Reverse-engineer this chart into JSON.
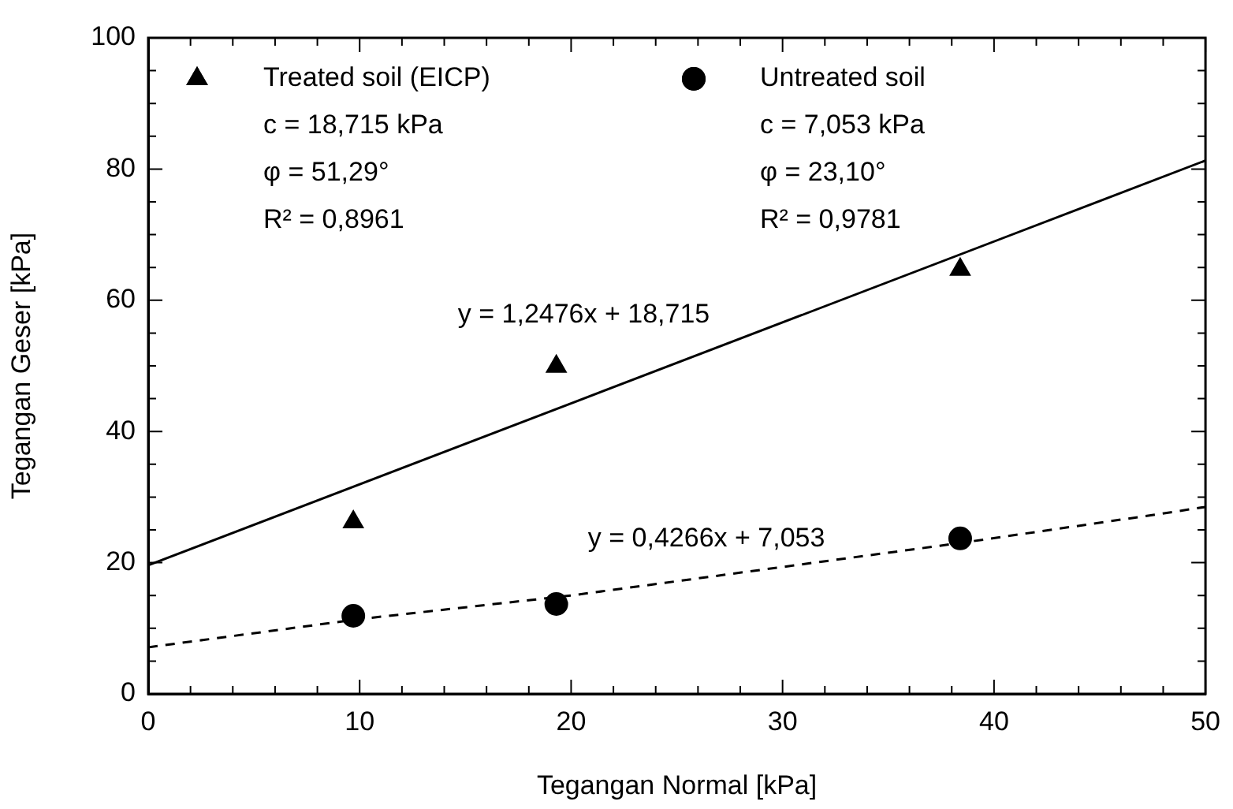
{
  "chart_data": {
    "type": "scatter",
    "xlabel": "Tegangan Normal [kPa]",
    "ylabel": "Tegangan Geser [kPa]",
    "xlim": [
      0,
      50
    ],
    "ylim": [
      0,
      100
    ],
    "xticks": [
      0,
      {
        "value": 2,
        "label": null
      },
      {
        "value": 4,
        "label": null
      },
      {
        "value": 6,
        "label": null
      },
      {
        "value": 8,
        "label": null
      },
      10,
      {
        "value": 12,
        "label": null
      },
      {
        "value": 14,
        "label": null
      },
      {
        "value": 16,
        "label": null
      },
      {
        "value": 18,
        "label": null
      },
      20,
      {
        "value": 22,
        "label": null
      },
      {
        "value": 24,
        "label": null
      },
      {
        "value": 26,
        "label": null
      },
      {
        "value": 28,
        "label": null
      },
      30,
      {
        "value": 32,
        "label": null
      },
      {
        "value": 34,
        "label": null
      },
      {
        "value": 36,
        "label": null
      },
      {
        "value": 38,
        "label": null
      },
      40,
      {
        "value": 42,
        "label": null
      },
      {
        "value": 44,
        "label": null
      },
      {
        "value": 46,
        "label": null
      },
      {
        "value": 48,
        "label": null
      },
      50
    ],
    "yticks": [
      0,
      {
        "value": 5,
        "label": null
      },
      {
        "value": 10,
        "label": null
      },
      {
        "value": 15,
        "label": null
      },
      20,
      {
        "value": 25,
        "label": null
      },
      {
        "value": 30,
        "label": null
      },
      {
        "value": 35,
        "label": null
      },
      40,
      {
        "value": 45,
        "label": null
      },
      {
        "value": 50,
        "label": null
      },
      {
        "value": 55,
        "label": null
      },
      60,
      {
        "value": 65,
        "label": null
      },
      {
        "value": 70,
        "label": null
      },
      {
        "value": 75,
        "label": null
      },
      80,
      {
        "value": 85,
        "label": null
      },
      {
        "value": 90,
        "label": null
      },
      {
        "value": 95,
        "label": null
      },
      100
    ],
    "grid": false,
    "legend": "top left",
    "series": [
      {
        "name": "Treated soil (EICP)",
        "marker": "triangle",
        "color": "#000000",
        "x": [
          9.7,
          19.3,
          38.4
        ],
        "values": [
          26.2,
          49.9,
          64.7
        ]
      },
      {
        "name": "Untreated soil",
        "marker": "circle",
        "color": "#000000",
        "x": [
          9.7,
          19.3,
          38.4
        ],
        "values": [
          11.9,
          13.7,
          23.7
        ]
      },
      {
        "type": "line",
        "marker": "none",
        "line_style": "solid",
        "color": "#000000",
        "x": [
          0,
          50
        ],
        "values": [
          19.6,
          81.3
        ]
      },
      {
        "type": "line",
        "marker": "none",
        "line_style": "dashed",
        "color": "#000000",
        "x": [
          0,
          10,
          20,
          38.4,
          47.8,
          50
        ],
        "values": [
          7.1,
          11.4,
          15.0,
          23.0,
          27.4,
          28.5
        ]
      }
    ],
    "annotations": [
      "c = 18,715 kPa",
      "φ = 51,29°",
      "R² = 0,8961",
      "c = 7,053 kPa",
      "φ = 23,10°",
      "R² = 0,9781",
      "y = 1,2476x + 18,715",
      "y = 0,4266x + 7,053"
    ]
  }
}
